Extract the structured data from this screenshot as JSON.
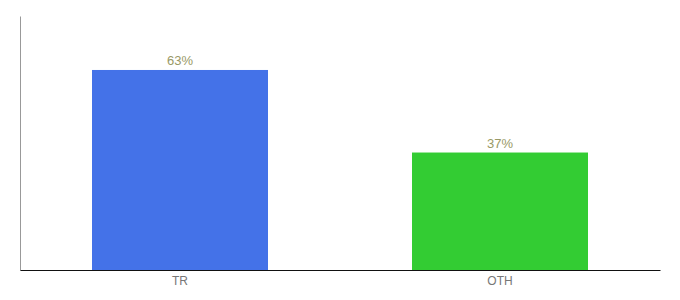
{
  "chart_data": {
    "type": "bar",
    "categories": [
      "TR",
      "OTH"
    ],
    "values": [
      63,
      37
    ],
    "value_labels": [
      "63%",
      "37%"
    ],
    "colors": [
      "#4472e8",
      "#33cc33"
    ],
    "ylim": [
      0,
      80
    ],
    "data_labels": true,
    "tick_labels": "x",
    "grid": false
  }
}
